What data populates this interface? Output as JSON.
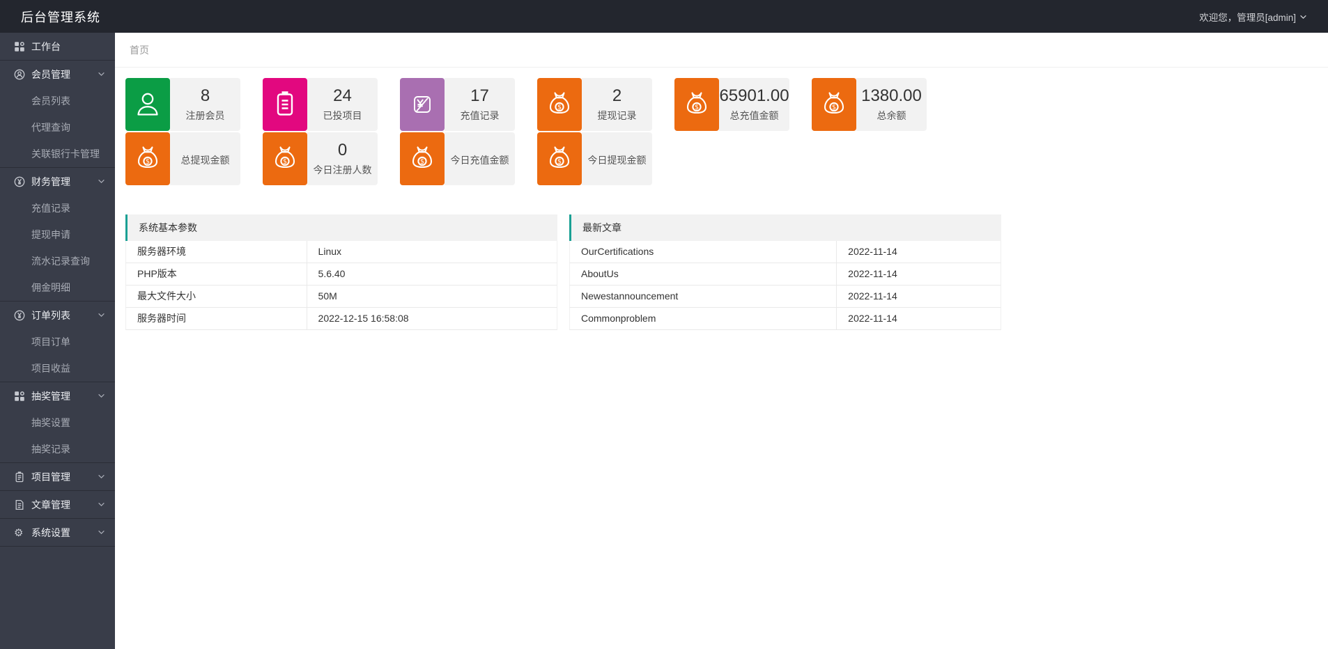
{
  "app": {
    "title": "后台管理系统",
    "welcome": "欢迎您，管理员[admin]"
  },
  "breadcrumb": {
    "home": "首页"
  },
  "sidebar": {
    "items": [
      {
        "id": "workbench",
        "icon": "grid-icon",
        "label": "工作台"
      },
      {
        "id": "members",
        "icon": "user-circle-icon",
        "label": "会员管理",
        "children": [
          "会员列表",
          "代理查询",
          "关联银行卡管理"
        ]
      },
      {
        "id": "finance",
        "icon": "yen-circle-icon",
        "label": "财务管理",
        "children": [
          "充值记录",
          "提现申请",
          "流水记录查询",
          "佣金明细"
        ]
      },
      {
        "id": "orders",
        "icon": "yen-circle-icon",
        "label": "订单列表",
        "children": [
          "项目订单",
          "项目收益"
        ]
      },
      {
        "id": "lottery",
        "icon": "grid-icon",
        "label": "抽奖管理",
        "children": [
          "抽奖设置",
          "抽奖记录"
        ]
      },
      {
        "id": "projects",
        "icon": "clipboard-icon",
        "label": "项目管理",
        "children": []
      },
      {
        "id": "articles",
        "icon": "document-icon",
        "label": "文章管理",
        "children": []
      },
      {
        "id": "settings",
        "icon": "gear-icon",
        "label": "系统设置",
        "children": []
      }
    ]
  },
  "stats": {
    "groups": [
      {
        "top": {
          "icon": "person-icon",
          "color": "#0b9d45",
          "value": "8",
          "label": "注册会员"
        },
        "bottom": {
          "icon": "money-bag-icon",
          "color": "#ec6a10",
          "value": "",
          "label": "总提现金额"
        }
      },
      {
        "top": {
          "icon": "clipboard-lines-icon",
          "color": "#e2087f",
          "value": "24",
          "label": "已投项目"
        },
        "bottom": {
          "icon": "money-bag-icon",
          "color": "#ec6a10",
          "value": "0",
          "label": "今日注册人数"
        }
      },
      {
        "top": {
          "icon": "yen-card-icon",
          "color": "#a96fb1",
          "value": "17",
          "label": "充值记录"
        },
        "bottom": {
          "icon": "money-bag-icon",
          "color": "#ec6a10",
          "value": "",
          "label": "今日充值金额"
        }
      },
      {
        "top": {
          "icon": "money-bag-icon",
          "color": "#ec6a10",
          "value": "2",
          "label": "提现记录"
        },
        "bottom": {
          "icon": "money-bag-icon",
          "color": "#ec6a10",
          "value": "",
          "label": "今日提现金额"
        }
      },
      {
        "top": {
          "icon": "money-bag-icon",
          "color": "#ec6a10",
          "value": "65901.00",
          "label": "总充值金额"
        }
      },
      {
        "top": {
          "icon": "money-bag-icon",
          "color": "#ec6a10",
          "value": "1380.00",
          "label": "总余额"
        }
      }
    ]
  },
  "panels": [
    {
      "title": "系统基本参数",
      "rows": [
        [
          "服务器环境",
          "Linux"
        ],
        [
          "PHP版本",
          "5.6.40"
        ],
        [
          "最大文件大小",
          "50M"
        ],
        [
          "服务器时间",
          "2022-12-15 16:58:08"
        ]
      ]
    },
    {
      "title": "最新文章",
      "rows": [
        [
          "OurCertifications",
          "2022-11-14"
        ],
        [
          "AboutUs",
          "2022-11-14"
        ],
        [
          "Newestannouncement",
          "2022-11-14"
        ],
        [
          "Commonproblem",
          "2022-11-14"
        ]
      ]
    }
  ],
  "colors": {
    "header_bg": "#23262e",
    "sidebar_bg": "#393d49",
    "accent_teal": "#1aa094",
    "green": "#0b9d45",
    "pink": "#e2087f",
    "purple": "#a96fb1",
    "orange": "#ec6a10"
  }
}
